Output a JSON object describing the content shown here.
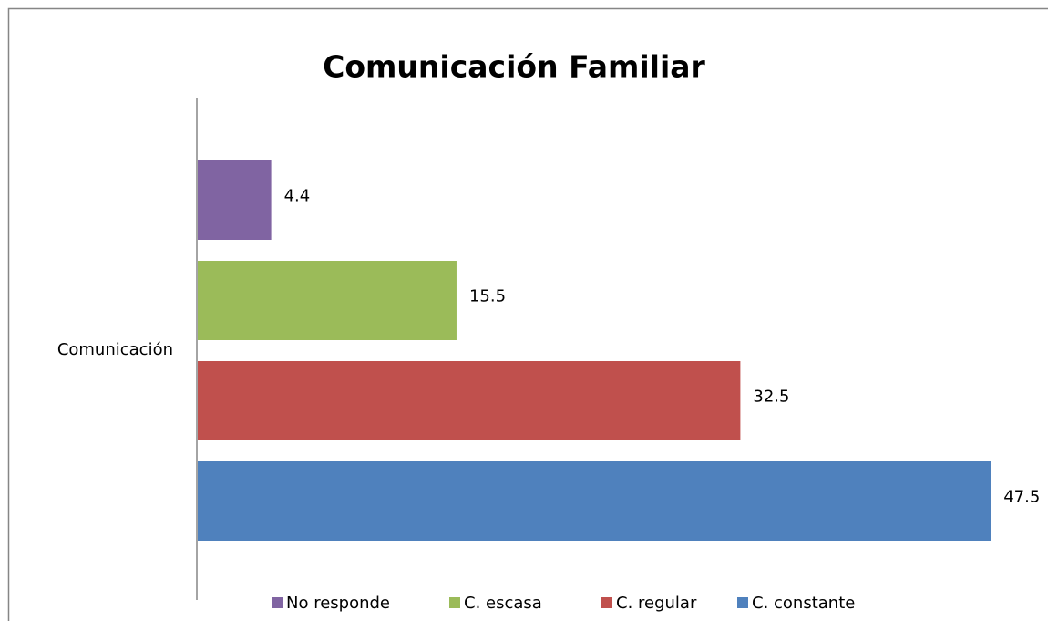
{
  "chart_data": {
    "type": "bar",
    "orientation": "horizontal",
    "title": "Comunicación Familiar",
    "categories": [
      "Comunicación"
    ],
    "series": [
      {
        "name": "No responde",
        "color": "#8064a2",
        "values": [
          4.4
        ]
      },
      {
        "name": "C. escasa",
        "color": "#9bbb59",
        "values": [
          15.5
        ]
      },
      {
        "name": "C. regular",
        "color": "#c0504d",
        "values": [
          32.5
        ]
      },
      {
        "name": "C. constante",
        "color": "#4f81bd",
        "values": [
          47.5
        ]
      }
    ],
    "legend": "bottom"
  }
}
